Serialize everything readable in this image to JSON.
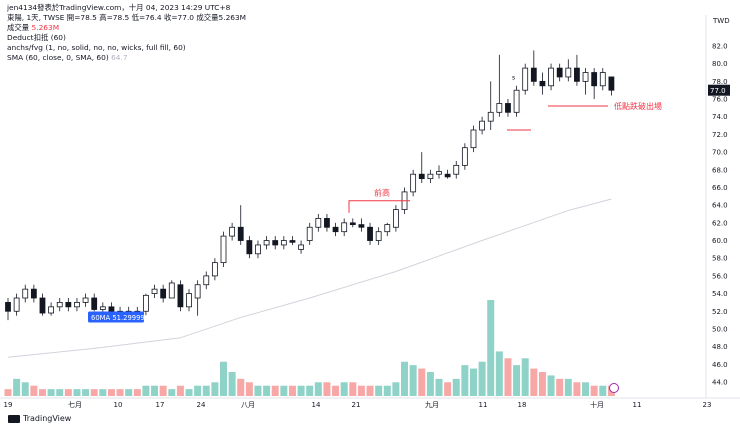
{
  "header": {
    "line1": "jen4134發表於TradingView.com，十月 04, 2023 14:29 UTC+8",
    "line2": "東陽, 1天, TWSE  開=78.5  高=78.5  低=76.4  收=77.0  成交量5.263M",
    "vol_label": "成交量",
    "vol_value": "5.263M",
    "line4": "Deduct扣抵 (60)",
    "line5": "anchs/fvg (1, no, solid, no, no, wicks, full fill, 60)",
    "line6_prefix": "SMA (60, close, 0, SMA, 60)",
    "line6_value": "64.7"
  },
  "currency": "TWD",
  "footer": {
    "brand": "TradingView"
  },
  "annotations": {
    "prev_high": "前高",
    "low_break": "低點跌破出場",
    "s_marker": "s",
    "ma_badge": "60MA  51.299999",
    "last_price": "77.0"
  },
  "colors": {
    "up": "#26a69a",
    "down": "#ef5350",
    "candle_up_fill": "#ffffff",
    "candle_down_fill": "#131722",
    "vol_up": "#8fd3c8",
    "vol_down": "#f7a8a6",
    "sma": "#d1d4dc",
    "annot": "#f23645",
    "badge": "#2962ff"
  },
  "chart_data": {
    "type": "candlestick",
    "ylim": [
      42,
      84
    ],
    "y_ticks": [
      44.0,
      46.0,
      48.0,
      50.0,
      52.0,
      54.0,
      56.0,
      58.0,
      60.0,
      62.0,
      64.0,
      66.0,
      68.0,
      70.0,
      72.0,
      74.0,
      76.0,
      78.0,
      80.0,
      82.0
    ],
    "x_ticks": [
      "19",
      "七月",
      "10",
      "17",
      "24",
      "八月",
      "14",
      "21",
      "九月",
      "11",
      "18",
      "十月",
      "11",
      "23"
    ],
    "candles": [
      [
        53.0,
        53.5,
        51.0,
        52.0
      ],
      [
        52.0,
        54.0,
        51.5,
        53.5
      ],
      [
        53.5,
        55.0,
        53.0,
        54.5
      ],
      [
        54.5,
        55.0,
        53.0,
        53.5
      ],
      [
        53.5,
        54.0,
        51.5,
        51.8
      ],
      [
        51.8,
        53.0,
        51.5,
        52.5
      ],
      [
        52.5,
        53.5,
        52.0,
        53.0
      ],
      [
        53.0,
        53.5,
        52.0,
        52.5
      ],
      [
        52.5,
        53.5,
        52.0,
        53.0
      ],
      [
        53.0,
        54.0,
        52.5,
        53.5
      ],
      [
        53.5,
        54.0,
        52.0,
        52.2
      ],
      [
        52.2,
        53.0,
        51.5,
        52.5
      ],
      [
        52.5,
        53.0,
        51.8,
        52.0
      ],
      [
        52.0,
        52.5,
        51.0,
        51.5
      ],
      [
        51.5,
        52.5,
        51.0,
        52.0
      ],
      [
        52.0,
        52.5,
        51.5,
        51.8
      ],
      [
        52.0,
        54.0,
        51.5,
        53.8
      ],
      [
        54.0,
        55.0,
        53.5,
        54.5
      ],
      [
        54.5,
        55.0,
        53.0,
        53.5
      ],
      [
        53.5,
        55.5,
        53.5,
        55.2
      ],
      [
        55.0,
        55.5,
        52.0,
        52.5
      ],
      [
        52.5,
        54.5,
        52.0,
        54.0
      ],
      [
        53.5,
        55.5,
        51.5,
        55.0
      ],
      [
        55.0,
        56.5,
        54.5,
        56.0
      ],
      [
        56.0,
        58.0,
        55.5,
        57.5
      ],
      [
        57.5,
        61.0,
        57.0,
        60.5
      ],
      [
        60.5,
        62.0,
        60.0,
        61.5
      ],
      [
        61.5,
        64.0,
        59.5,
        60.0
      ],
      [
        60.0,
        60.5,
        58.0,
        58.5
      ],
      [
        58.5,
        60.0,
        58.0,
        59.5
      ],
      [
        59.5,
        60.5,
        59.0,
        60.0
      ],
      [
        60.0,
        60.5,
        59.0,
        59.5
      ],
      [
        59.5,
        60.5,
        59.0,
        60.0
      ],
      [
        60.0,
        60.5,
        59.5,
        59.8
      ],
      [
        59.0,
        60.0,
        58.5,
        59.5
      ],
      [
        60.0,
        62.0,
        59.5,
        61.5
      ],
      [
        61.5,
        63.0,
        61.0,
        62.5
      ],
      [
        62.5,
        63.0,
        61.0,
        61.5
      ],
      [
        61.5,
        62.0,
        60.5,
        61.0
      ],
      [
        61.0,
        62.5,
        60.5,
        62.0
      ],
      [
        62.0,
        62.5,
        61.5,
        61.8
      ],
      [
        61.8,
        62.5,
        61.0,
        61.5
      ],
      [
        61.5,
        62.0,
        59.5,
        60.0
      ],
      [
        60.0,
        61.5,
        59.5,
        61.0
      ],
      [
        61.0,
        62.0,
        60.5,
        61.8
      ],
      [
        61.5,
        64.0,
        61.0,
        63.5
      ],
      [
        63.5,
        66.0,
        63.0,
        65.5
      ],
      [
        65.5,
        68.0,
        65.0,
        67.5
      ],
      [
        67.5,
        70.0,
        66.5,
        67.0
      ],
      [
        67.0,
        68.0,
        66.5,
        67.5
      ],
      [
        67.5,
        68.5,
        67.0,
        67.8
      ],
      [
        67.5,
        68.0,
        67.0,
        67.2
      ],
      [
        67.5,
        69.0,
        67.0,
        68.5
      ],
      [
        68.5,
        71.0,
        68.0,
        70.5
      ],
      [
        70.5,
        73.0,
        70.0,
        72.5
      ],
      [
        72.5,
        74.0,
        72.0,
        73.5
      ],
      [
        73.5,
        78.0,
        72.5,
        74.5
      ],
      [
        74.5,
        81.0,
        74.0,
        75.5
      ],
      [
        75.5,
        76.0,
        74.0,
        74.5
      ],
      [
        74.5,
        77.5,
        74.0,
        77.0
      ],
      [
        77.0,
        80.0,
        76.5,
        79.5
      ],
      [
        79.5,
        81.5,
        77.5,
        78.0
      ],
      [
        78.0,
        79.0,
        76.5,
        77.5
      ],
      [
        77.5,
        80.0,
        77.0,
        79.5
      ],
      [
        79.5,
        80.0,
        78.0,
        78.5
      ],
      [
        78.5,
        80.5,
        78.0,
        79.5
      ],
      [
        79.5,
        81.0,
        77.5,
        78.0
      ],
      [
        78.0,
        79.5,
        76.5,
        79.0
      ],
      [
        79.0,
        79.5,
        76.0,
        77.5
      ],
      [
        77.5,
        79.5,
        77.0,
        79.0
      ],
      [
        78.5,
        78.5,
        76.4,
        77.0
      ]
    ],
    "volume": [
      2,
      5,
      4,
      3,
      2,
      2,
      2,
      2,
      2,
      2,
      2,
      2,
      2,
      2,
      2,
      2,
      3,
      3,
      3,
      2,
      3,
      2,
      3,
      3,
      4,
      10,
      7,
      5,
      4,
      3,
      3,
      3,
      3,
      3,
      3,
      3,
      4,
      4,
      3,
      4,
      4,
      3,
      3,
      3,
      3,
      4,
      10,
      9,
      8,
      7,
      5,
      4,
      5,
      9,
      8,
      10,
      28,
      13,
      11,
      9,
      11,
      8,
      7,
      6,
      5,
      5,
      4,
      4,
      3,
      3,
      3
    ],
    "sma": [
      [
        0,
        46.8
      ],
      [
        10,
        47.8
      ],
      [
        20,
        49.0
      ],
      [
        27,
        51.3
      ],
      [
        35,
        53.5
      ],
      [
        45,
        56.5
      ],
      [
        55,
        60.0
      ],
      [
        65,
        63.4
      ],
      [
        70,
        64.7
      ]
    ],
    "ma_badge_value": 51.299999,
    "prev_high_level": 64.5,
    "low_break_level": 76.0
  }
}
